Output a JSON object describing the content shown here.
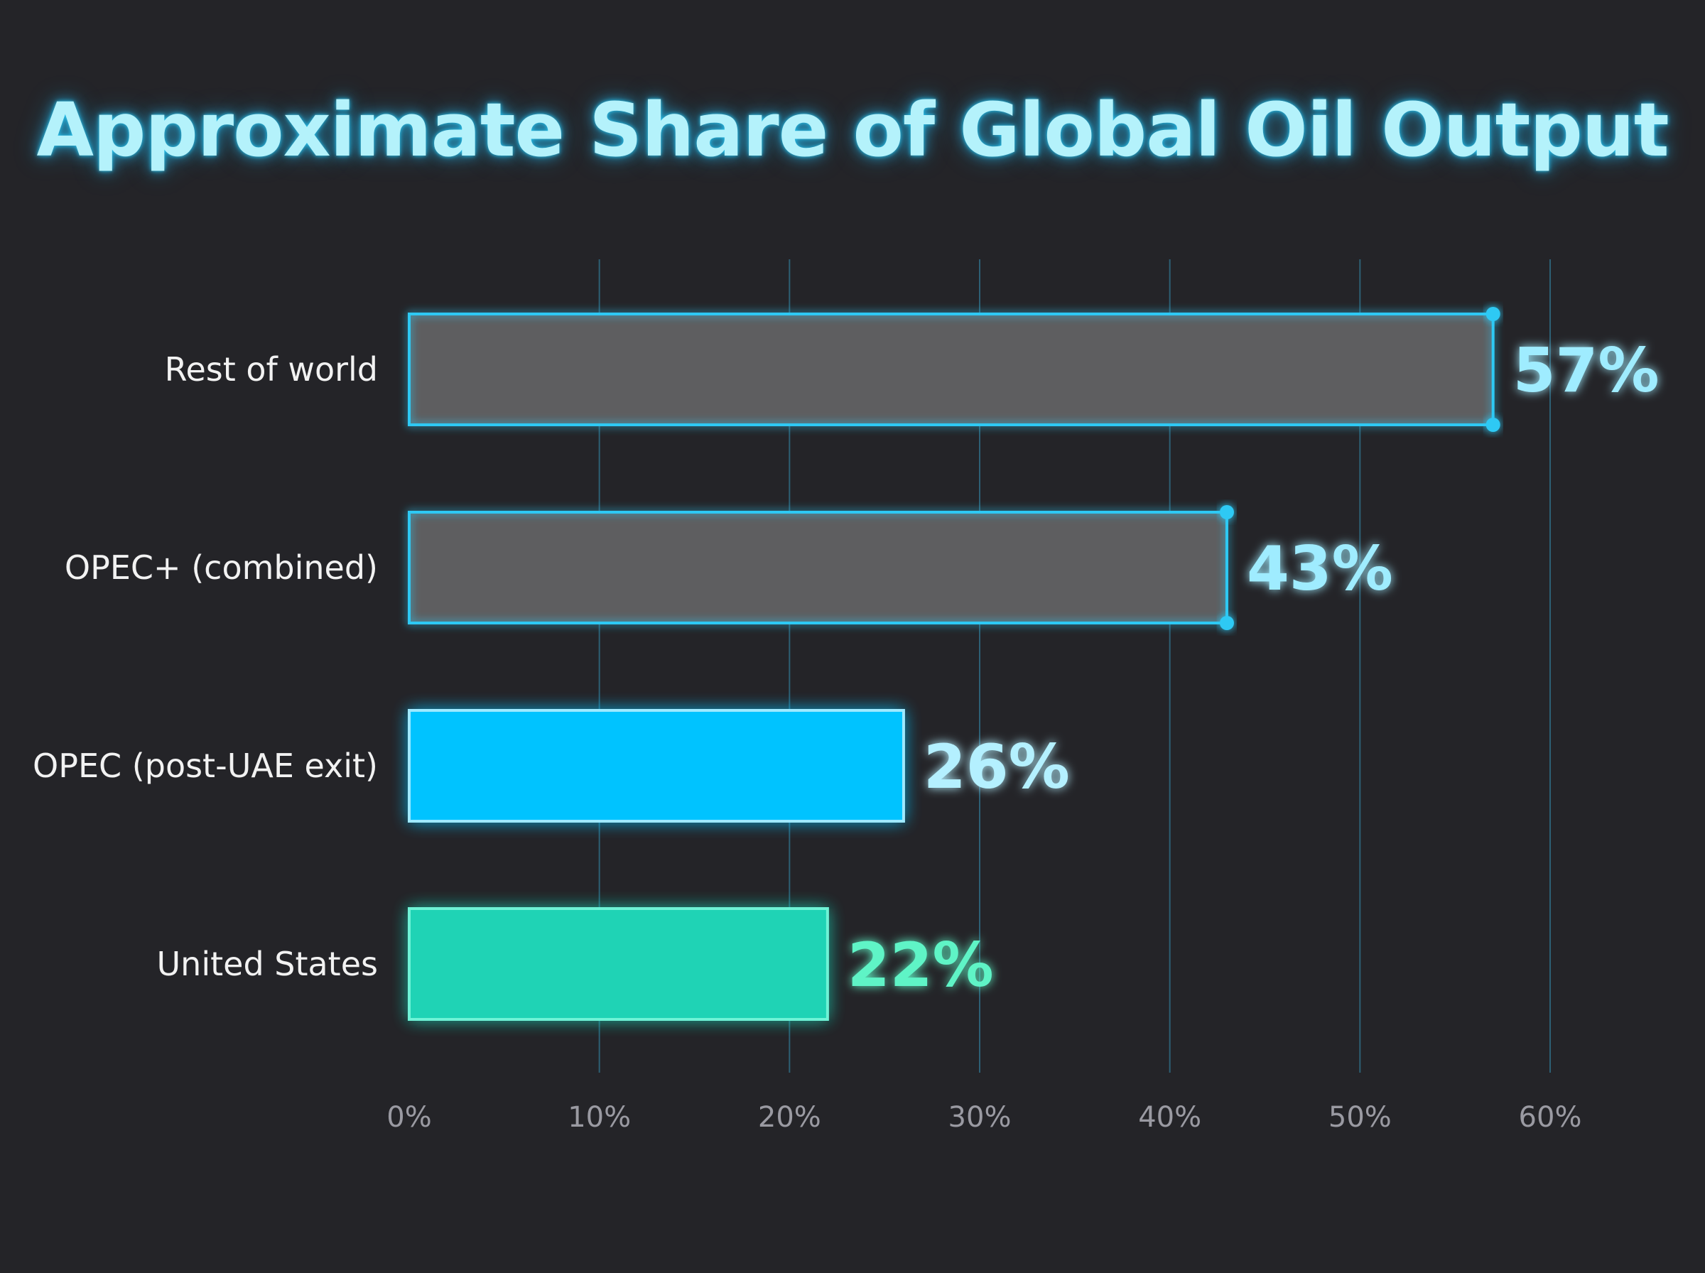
{
  "chart_data": {
    "type": "bar",
    "orientation": "horizontal",
    "title": "Approximate Share of Global Oil Output",
    "xlabel": "",
    "ylabel": "",
    "categories": [
      "Rest of world",
      "OPEC+ (combined)",
      "OPEC (post-UAE exit)",
      "United States"
    ],
    "values": [
      57,
      43,
      26,
      22
    ],
    "value_labels": [
      "57%",
      "43%",
      "26%",
      "22%"
    ],
    "xlim": [
      0,
      60
    ],
    "xticks": [
      0,
      10,
      20,
      30,
      40,
      50,
      60
    ],
    "xtick_labels": [
      "0%",
      "10%",
      "20%",
      "30%",
      "40%",
      "50%",
      "60%"
    ],
    "grid": "vertical",
    "legend": "none",
    "styles": [
      {
        "fill": "#5e5e60",
        "stroke": "#2ec9f4",
        "label_color": "#9fecff",
        "end_markers": true
      },
      {
        "fill": "#5e5e60",
        "stroke": "#2ec9f4",
        "label_color": "#9fecff",
        "end_markers": true
      },
      {
        "fill": "#00c3ff",
        "stroke": "#9fe9ff",
        "label_color": "#b4f0ff",
        "end_markers": false
      },
      {
        "fill": "#1fd3b5",
        "stroke": "#6ff3d6",
        "label_color": "#5ef4c6",
        "end_markers": false
      }
    ],
    "colors": {
      "background": "#242428",
      "axis": "#2bb7e0",
      "grid": "#2f6a82",
      "title": "#b4f2fb"
    }
  }
}
